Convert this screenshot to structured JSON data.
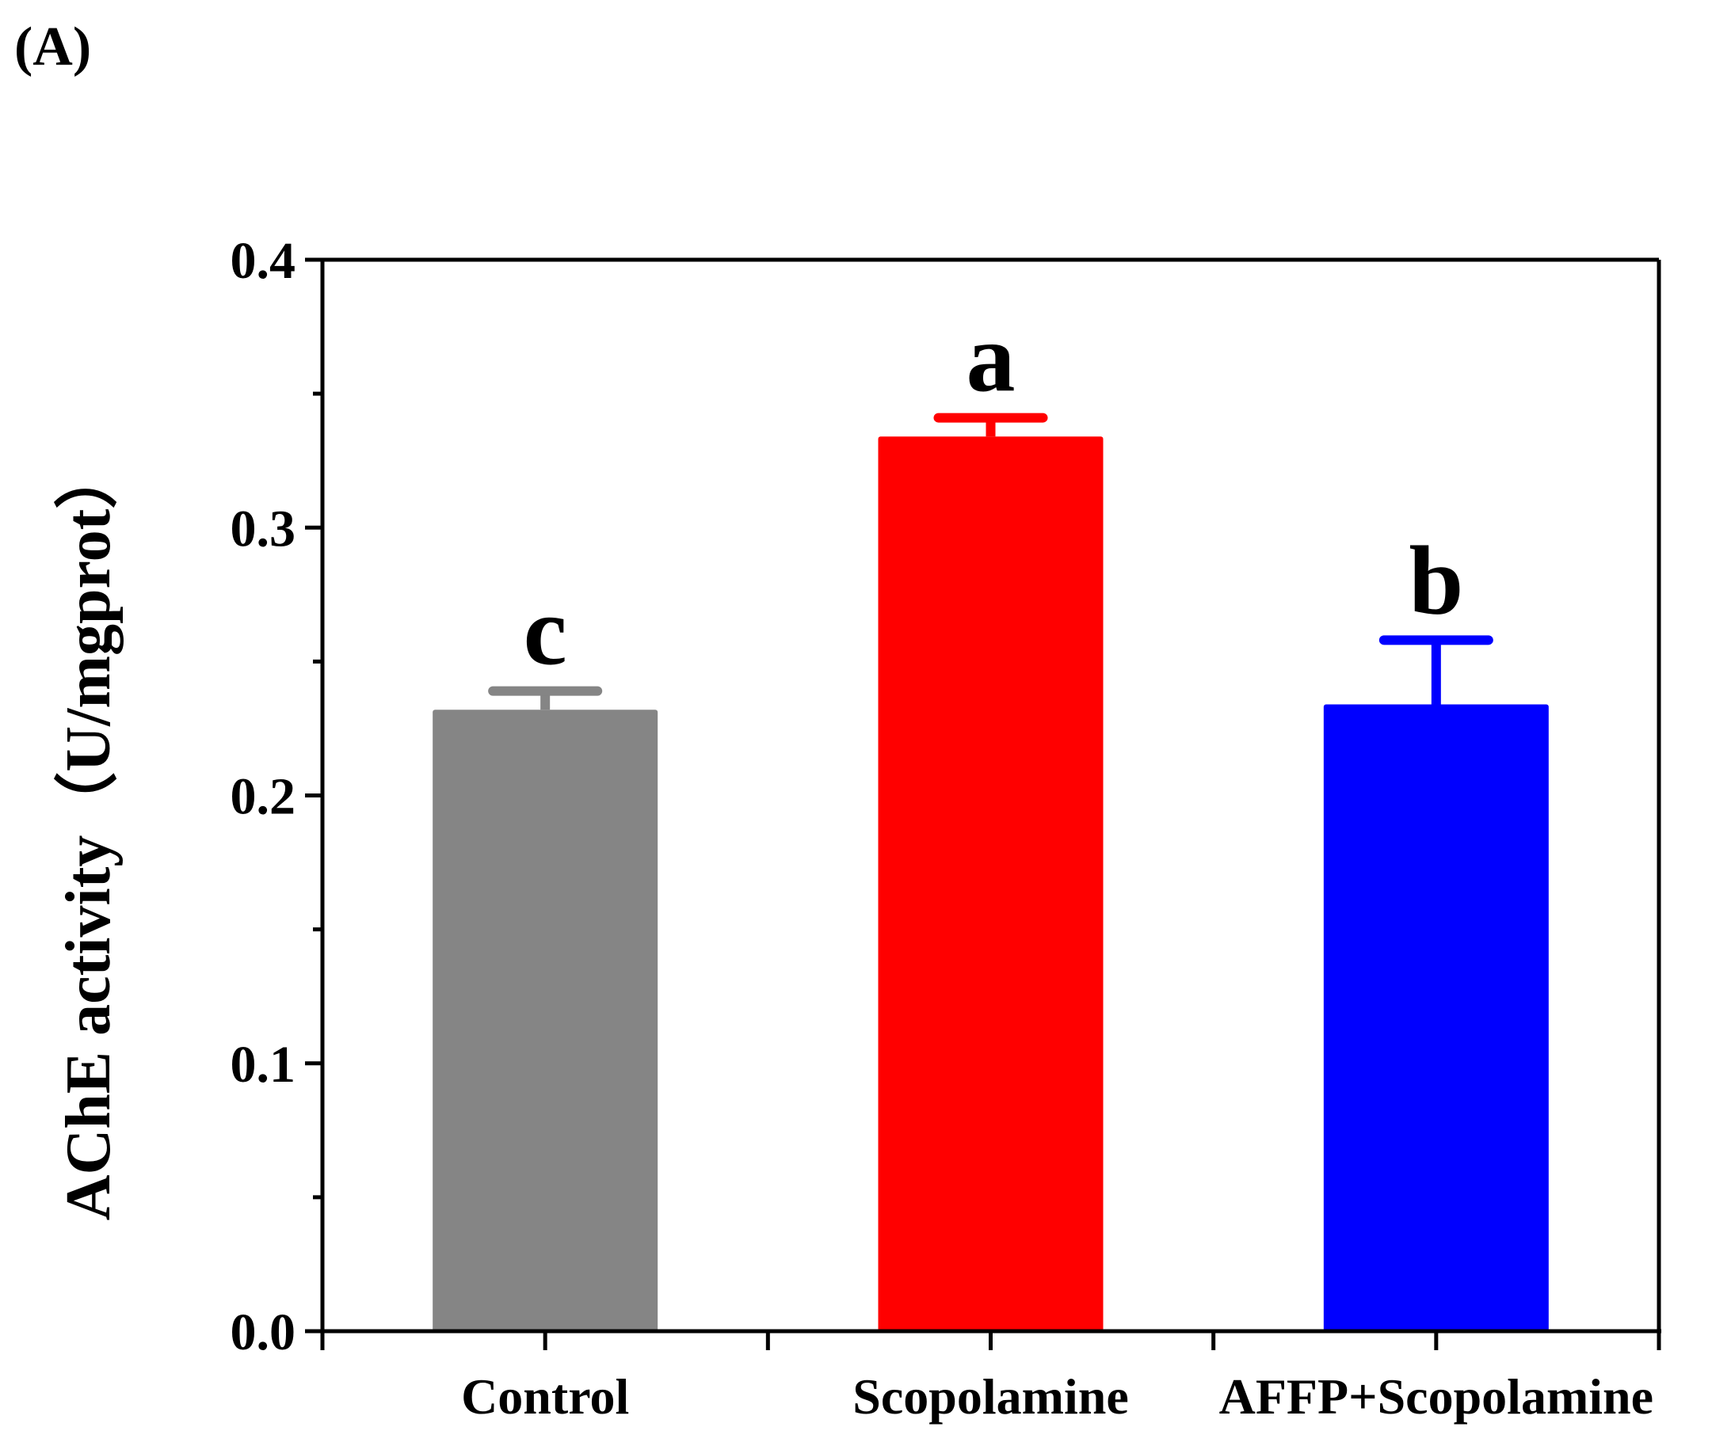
{
  "panel_label": "(A)",
  "chart_data": {
    "type": "bar",
    "title": "",
    "xlabel": "",
    "ylabel": "AChE activity（U/mgprot）",
    "ylim": [
      0,
      0.4
    ],
    "yticks": [
      0.0,
      0.1,
      0.2,
      0.3,
      0.4
    ],
    "ytick_labels": [
      "0.0",
      "0.1",
      "0.2",
      "0.3",
      "0.4"
    ],
    "categories": [
      "Control",
      "Scopolamine",
      "AFFP+Scopolamine"
    ],
    "values": [
      0.232,
      0.334,
      0.234
    ],
    "errors": [
      0.007,
      0.007,
      0.024
    ],
    "significance_letters": [
      "c",
      "a",
      "b"
    ],
    "colors": [
      "#858585",
      "#ff0000",
      "#0000ff"
    ]
  }
}
